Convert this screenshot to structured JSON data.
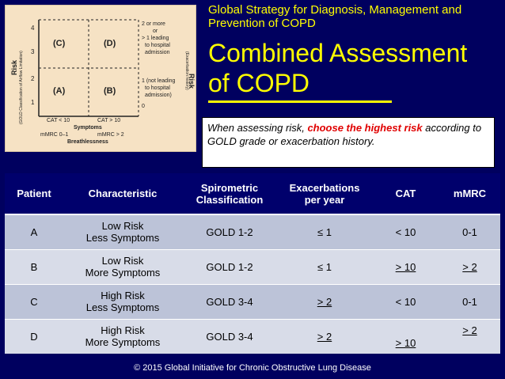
{
  "grid": {
    "y_axis_label": "Risk",
    "y_axis_sub": "(GOLD Classification of Airflow Limitation)",
    "right_axis_label": "Risk",
    "right_axis_sub": "(Exacerbation history)",
    "y_ticks": [
      "4",
      "3",
      "2",
      "1"
    ],
    "cells": [
      "(C)",
      "(D)",
      "(A)",
      "(B)"
    ],
    "right_top": [
      "2 or more",
      "or",
      "> 1 leading",
      "to hospital",
      "admission"
    ],
    "right_bottom": [
      "1 (not leading",
      "to hospital",
      "admission)"
    ],
    "right_zero": "0",
    "cat_low": "CAT < 10",
    "cat_high": "CAT > 10",
    "symptoms": "Symptoms",
    "mmrc_low": "mMRC 0–1",
    "mmrc_high": "mMRC > 2",
    "breathlessness": "Breathlessness"
  },
  "header": {
    "subtitle_line1": "Global Strategy for Diagnosis, Management and",
    "subtitle_line2": "Prevention of COPD",
    "title_line1": "Combined Assessment",
    "title_line2": "of COPD"
  },
  "callout": {
    "pre": "When assessing risk, ",
    "highlight": "choose the highest risk",
    "post": " according to GOLD grade or exacerbation history."
  },
  "table": {
    "headers": [
      "Patient",
      "Characteristic",
      "Spirometric Classification",
      "Exacerbations per year",
      "CAT",
      "mMRC"
    ],
    "rows": [
      {
        "patient": "A",
        "char1": "Low Risk",
        "char2": "Less Symptoms",
        "spiro": "GOLD 1-2",
        "exac": "≤ 1",
        "cat": "< 10",
        "mmrc": "0-1"
      },
      {
        "patient": "B",
        "char1": "Low Risk",
        "char2": "More Symptoms",
        "spiro": "GOLD 1-2",
        "exac": "≤ 1",
        "cat": "> 10",
        "mmrc": "> 2"
      },
      {
        "patient": "C",
        "char1": "High Risk",
        "char2": "Less Symptoms",
        "spiro": "GOLD 3-4",
        "exac": "> 2",
        "cat": "< 10",
        "mmrc": "0-1"
      },
      {
        "patient": "D",
        "char1": "High Risk",
        "char2": "More Symptoms",
        "spiro": "GOLD 3-4",
        "exac": "> 2",
        "cat": "> 10",
        "mmrc": "> 2"
      }
    ]
  },
  "footer": "© 2015 Global Initiative for Chronic Obstructive Lung Disease"
}
